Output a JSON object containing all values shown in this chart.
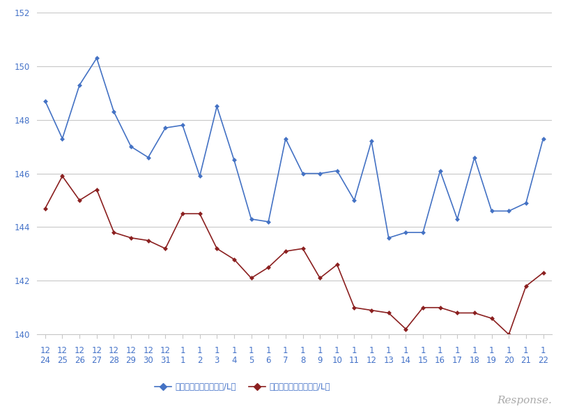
{
  "x_labels_top": [
    "12",
    "12",
    "12",
    "12",
    "12",
    "12",
    "12",
    "12",
    "1",
    "1",
    "1",
    "1",
    "1",
    "1",
    "1",
    "1",
    "1",
    "1",
    "1",
    "1",
    "1",
    "1",
    "1",
    "1",
    "1",
    "1",
    "1",
    "1",
    "1",
    "1"
  ],
  "x_labels_bottom": [
    "24",
    "25",
    "26",
    "27",
    "28",
    "29",
    "30",
    "31",
    "1",
    "2",
    "3",
    "4",
    "5",
    "6",
    "7",
    "8",
    "9",
    "10",
    "11",
    "12",
    "13",
    "14",
    "15",
    "16",
    "17",
    "18",
    "19",
    "20",
    "21",
    "22"
  ],
  "blue_values": [
    148.7,
    147.3,
    149.3,
    150.3,
    148.3,
    147.0,
    146.6,
    147.7,
    147.8,
    145.9,
    148.5,
    146.5,
    144.3,
    144.2,
    147.3,
    146.0,
    146.0,
    146.1,
    145.0,
    147.2,
    143.6,
    143.8,
    143.8,
    146.1,
    144.3,
    146.6,
    144.6,
    144.6,
    144.9,
    147.3
  ],
  "red_values": [
    144.7,
    145.9,
    145.0,
    145.4,
    143.8,
    143.6,
    143.5,
    143.2,
    144.5,
    144.5,
    143.2,
    142.8,
    142.1,
    142.5,
    143.1,
    143.2,
    142.1,
    142.6,
    141.0,
    140.9,
    140.8,
    140.2,
    141.0,
    141.0,
    140.8,
    140.8,
    140.6,
    140.0,
    141.8,
    142.3
  ],
  "blue_color": "#4472c4",
  "red_color": "#8B2020",
  "ylim": [
    140,
    152
  ],
  "yticks": [
    140,
    142,
    144,
    146,
    148,
    150,
    152
  ],
  "legend_blue": "ハイオク看板価格（円/L）",
  "legend_red": "ハイオク実売価格（円/L）",
  "bg_color": "#ffffff",
  "grid_color": "#c8c8c8",
  "watermark": "Response.",
  "font_color": "#4472c4",
  "tick_color": "#4472c8",
  "axis_label_fontsize": 8.5,
  "ytick_fontsize": 8.5,
  "legend_fontsize": 8.5
}
